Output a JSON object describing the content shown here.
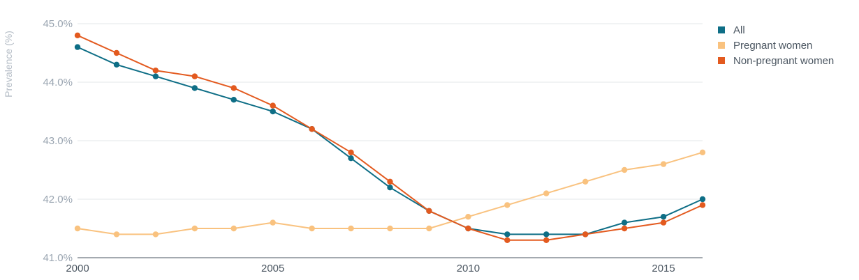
{
  "chart_data": {
    "type": "line",
    "x": [
      2000,
      2001,
      2002,
      2003,
      2004,
      2005,
      2006,
      2007,
      2008,
      2009,
      2010,
      2011,
      2012,
      2013,
      2014,
      2015,
      2016
    ],
    "series": [
      {
        "name": "All",
        "color": "#0e6e86",
        "values": [
          44.6,
          44.3,
          44.1,
          43.9,
          43.7,
          43.5,
          43.2,
          42.7,
          42.2,
          41.8,
          41.5,
          41.4,
          41.4,
          41.4,
          41.6,
          41.7,
          42.0
        ]
      },
      {
        "name": "Pregnant women",
        "color": "#f9c27f",
        "values": [
          41.5,
          41.4,
          41.4,
          41.5,
          41.5,
          41.6,
          41.5,
          41.5,
          41.5,
          41.5,
          41.7,
          41.9,
          42.1,
          42.3,
          42.5,
          42.6,
          42.8
        ]
      },
      {
        "name": "Non-pregnant women",
        "color": "#e35a1f",
        "values": [
          44.8,
          44.5,
          44.2,
          44.1,
          43.9,
          43.6,
          43.2,
          42.8,
          42.3,
          41.8,
          41.5,
          41.3,
          41.3,
          41.4,
          41.5,
          41.6,
          41.9
        ]
      }
    ],
    "ylabel": "Prevalence (%)",
    "ylim": [
      41.0,
      45.0
    ],
    "xlim": [
      2000,
      2016
    ],
    "y_ticks": [
      "41.0%",
      "42.0%",
      "43.0%",
      "44.0%",
      "45.0%"
    ],
    "y_tick_values": [
      41.0,
      42.0,
      43.0,
      44.0,
      45.0
    ],
    "x_ticks": [
      "2000",
      "2005",
      "2010",
      "2015"
    ],
    "x_tick_values": [
      2000,
      2005,
      2010,
      2015
    ],
    "grid": true,
    "legend_position": "top-right"
  }
}
